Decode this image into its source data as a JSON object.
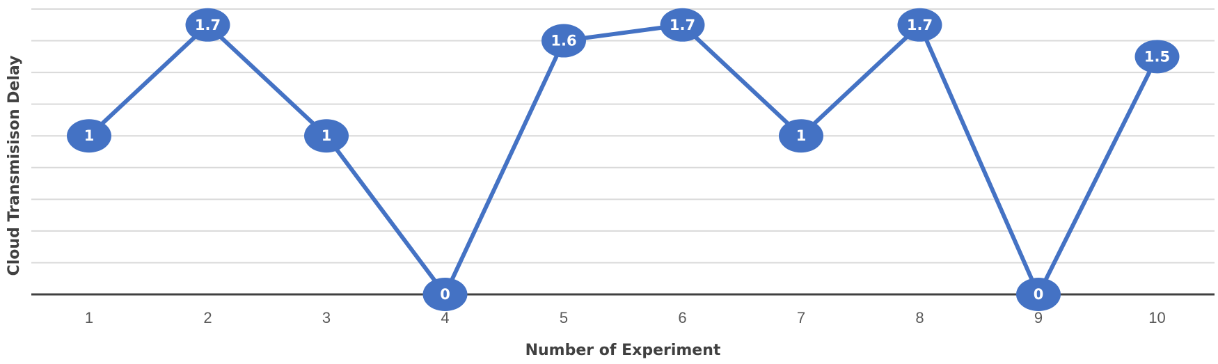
{
  "chart_data": {
    "type": "line",
    "title": "",
    "xlabel": "Number of Experiment",
    "ylabel": "Cloud Transmisison Delay",
    "categories": [
      "1",
      "2",
      "3",
      "4",
      "5",
      "6",
      "7",
      "8",
      "9",
      "10"
    ],
    "series": [
      {
        "values": [
          1,
          1.7,
          1,
          0,
          1.6,
          1.7,
          1,
          1.7,
          0,
          1.5
        ]
      }
    ],
    "ylim": [
      0,
      1.8
    ],
    "grid": true,
    "legend": "none",
    "colors": {
      "line": "#4472c4",
      "marker": "#4472c4",
      "grid": "#d9d9d9",
      "axis": "#404040"
    }
  }
}
